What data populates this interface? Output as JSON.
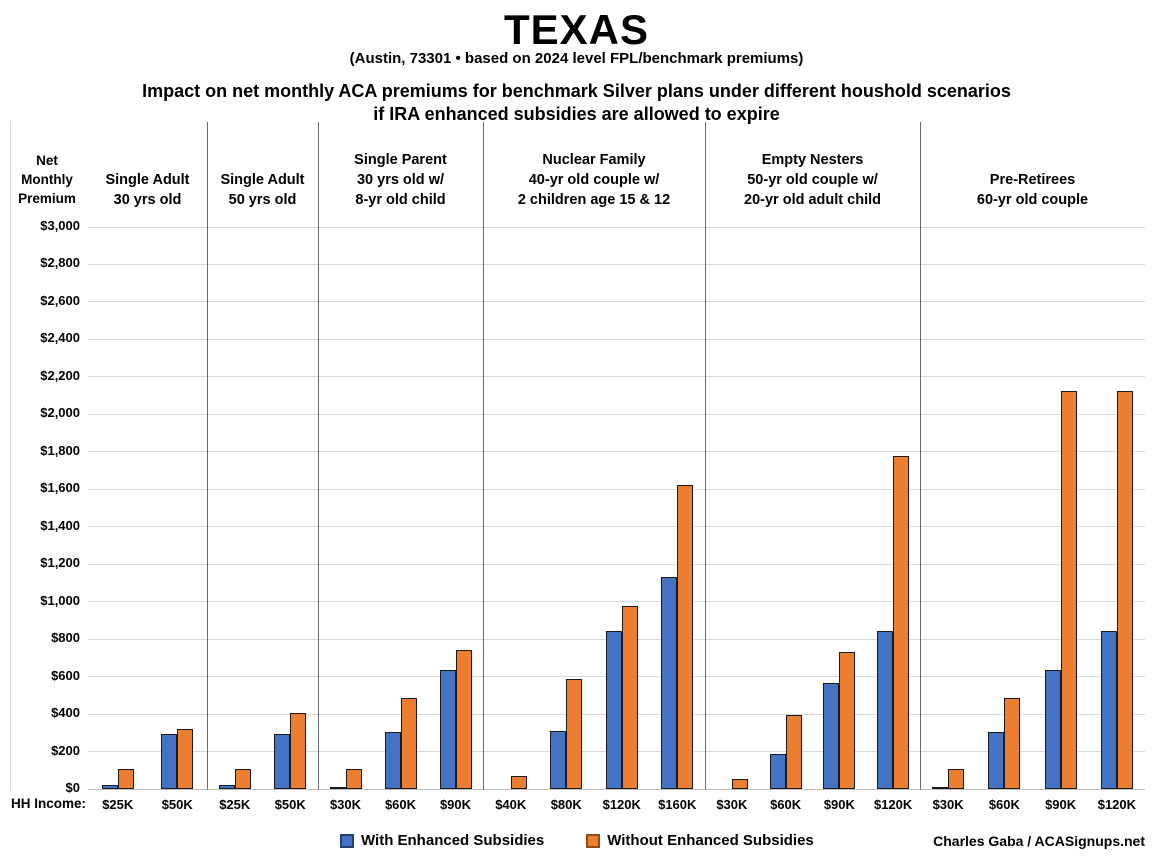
{
  "title": "TEXAS",
  "subtitle": "(Austin, 73301 • based on 2024 level FPL/benchmark premiums)",
  "heading_line1": "Impact on net monthly ACA premiums for benchmark Silver plans under different houshold scenarios",
  "heading_line2": "if IRA enhanced subsidies are allowed to expire",
  "y_axis_title_lines": [
    "Net",
    "Monthly",
    "Premium"
  ],
  "hh_income_label": "HH Income:",
  "credit": "Charles Gaba / ACASignups.net",
  "chart_data": {
    "type": "bar",
    "title": "TEXAS — Impact on net monthly ACA premiums for benchmark Silver plans if IRA enhanced subsidies expire",
    "ylabel": "Net Monthly Premium",
    "xlabel": "HH Income",
    "ylim": [
      0,
      3000
    ],
    "ytick_step": 200,
    "ytick_prefix": "$",
    "grid": "horizontal",
    "legend_position": "bottom",
    "series": [
      {
        "name": "With Enhanced Subsidies",
        "color": "#4472C4"
      },
      {
        "name": "Without Enhanced Subsidies",
        "color": "#ED7D31"
      }
    ],
    "groups": [
      {
        "header_lines": [
          "Single Adult",
          "30 yrs old"
        ],
        "categories": [
          "$25K",
          "$50K"
        ],
        "with_enhanced": [
          20,
          295
        ],
        "without_enhanced": [
          105,
          320
        ]
      },
      {
        "header_lines": [
          "Single Adult",
          "50 yrs old"
        ],
        "categories": [
          "$25K",
          "$50K"
        ],
        "with_enhanced": [
          20,
          295
        ],
        "without_enhanced": [
          105,
          405
        ]
      },
      {
        "header_lines": [
          "Single Parent",
          "30 yrs old w/",
          "8-yr old child"
        ],
        "categories": [
          "$30K",
          "$60K",
          "$90K"
        ],
        "with_enhanced": [
          10,
          305,
          635
        ],
        "without_enhanced": [
          105,
          485,
          740
        ]
      },
      {
        "header_lines": [
          "Nuclear Family",
          "40-yr old couple w/",
          "2 children age 15 & 12"
        ],
        "categories": [
          "$40K",
          "$80K",
          "$120K",
          "$160K"
        ],
        "with_enhanced": [
          0,
          310,
          845,
          1130
        ],
        "without_enhanced": [
          70,
          585,
          975,
          1625
        ]
      },
      {
        "header_lines": [
          "Empty Nesters",
          "50-yr old couple w/",
          "20-yr old adult child"
        ],
        "categories": [
          "$30K",
          "$60K",
          "$90K",
          "$120K"
        ],
        "with_enhanced": [
          0,
          185,
          565,
          845
        ],
        "without_enhanced": [
          55,
          395,
          730,
          1780
        ]
      },
      {
        "header_lines": [
          "Pre-Retirees",
          "60-yr old couple"
        ],
        "categories": [
          "$30K",
          "$60K",
          "$90K",
          "$120K"
        ],
        "with_enhanced": [
          10,
          305,
          635,
          845
        ],
        "without_enhanced": [
          105,
          485,
          2125,
          2125
        ]
      }
    ]
  }
}
